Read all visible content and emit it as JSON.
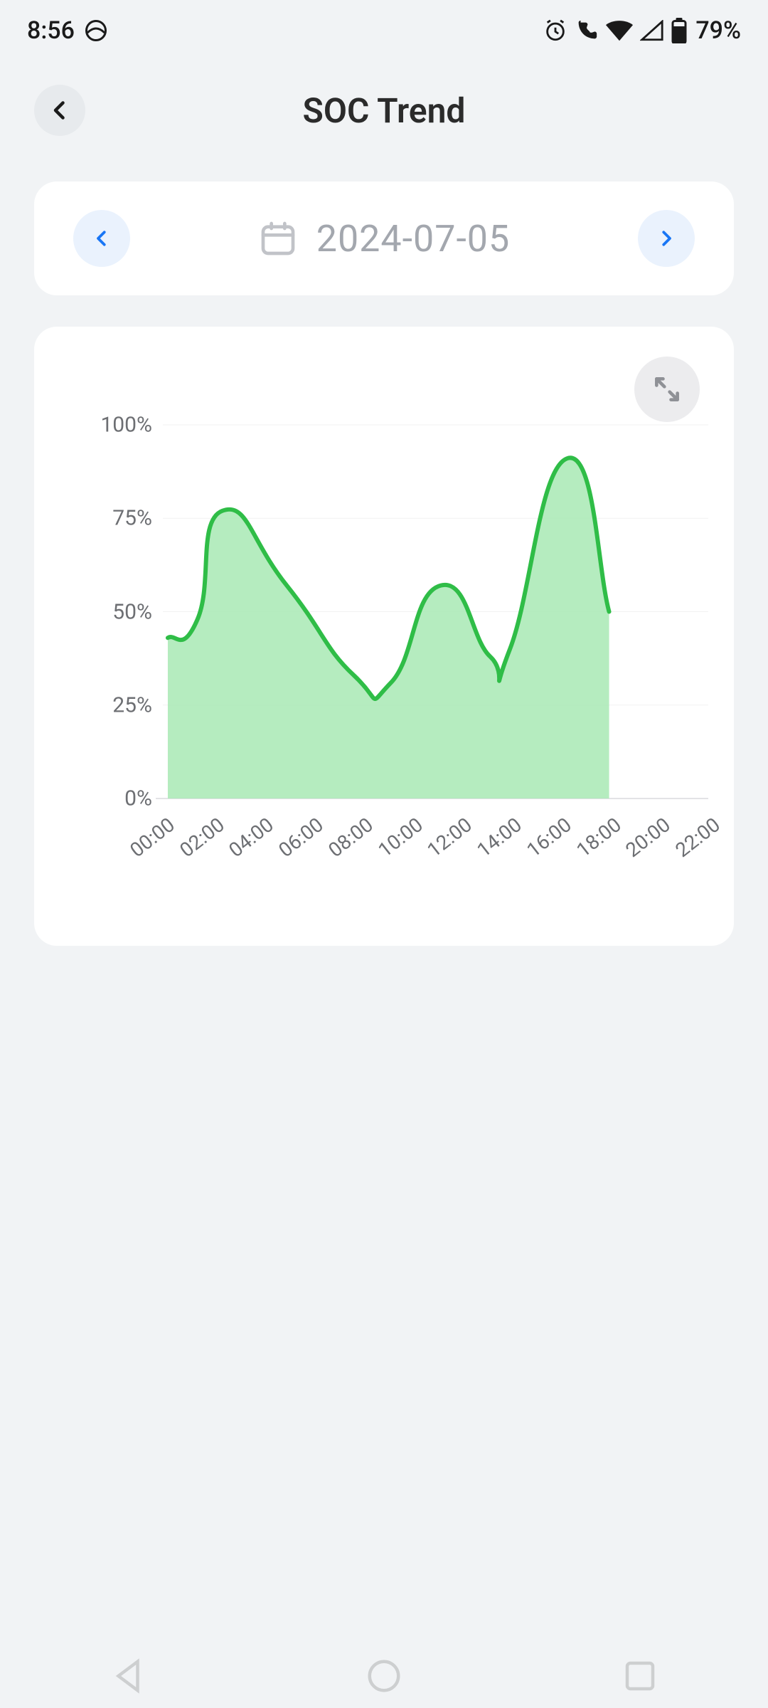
{
  "status": {
    "time": "8:56",
    "battery_text": "79%"
  },
  "header": {
    "title": "SOC Trend"
  },
  "date": {
    "date_text": "2024-07-05"
  },
  "chart": {
    "type": "area",
    "ylim": [
      0,
      100
    ],
    "yticks": [
      0,
      25,
      50,
      75,
      100
    ],
    "ytick_labels": [
      "0%",
      "25%",
      "50%",
      "75%",
      "100%"
    ],
    "x_categories": [
      "00:00",
      "02:00",
      "04:00",
      "06:00",
      "08:00",
      "10:00",
      "12:00",
      "14:00",
      "16:00",
      "18:00",
      "20:00",
      "22:00"
    ],
    "x_plotted": [
      0,
      2,
      4,
      6,
      8,
      10,
      12,
      14,
      16,
      18
    ],
    "xlim": [
      0,
      22
    ],
    "data_points": [
      {
        "x": 0.2,
        "y": 43
      },
      {
        "x": 1.4,
        "y": 48
      },
      {
        "x": 2.4,
        "y": 77
      },
      {
        "x": 5.0,
        "y": 57
      },
      {
        "x": 7.7,
        "y": 33
      },
      {
        "x": 9.2,
        "y": 31
      },
      {
        "x": 11.2,
        "y": 57
      },
      {
        "x": 13.2,
        "y": 38
      },
      {
        "x": 14.0,
        "y": 40
      },
      {
        "x": 16.3,
        "y": 91
      },
      {
        "x": 18.0,
        "y": 50
      }
    ],
    "line_color": "#2fbd47",
    "fill_color": "#a8e9b4",
    "line_width": 6,
    "grid_color": "#f1f1f1",
    "axis_color": "#e3e3e6",
    "background": "#ffffff",
    "smoothing": 0.28
  },
  "colors": {
    "page_bg": "#f1f3f5",
    "card_bg": "#ffffff",
    "accent_blue": "#1976f5",
    "muted_text": "#a3a7ae",
    "icon_gray": "#8f9196"
  }
}
